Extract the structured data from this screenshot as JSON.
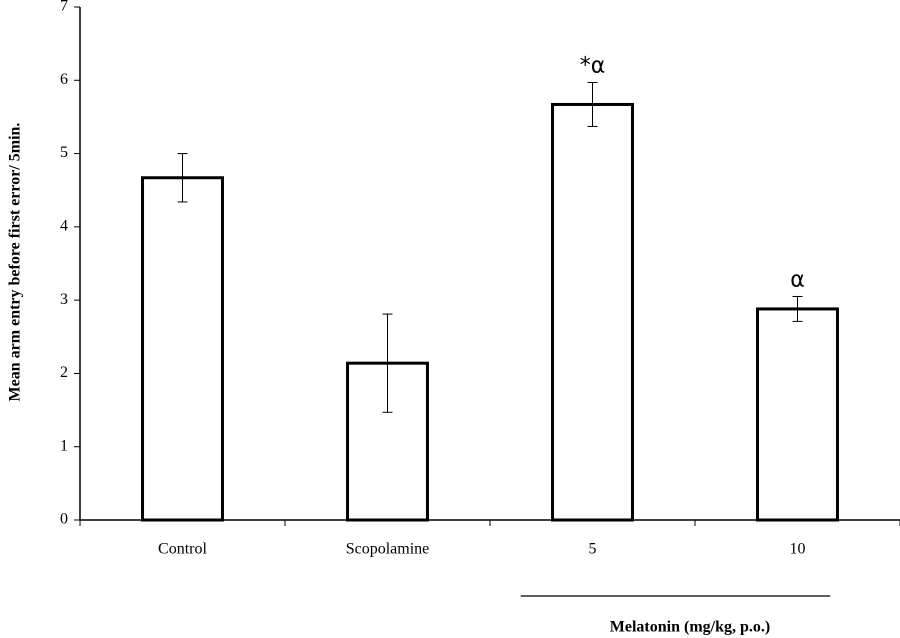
{
  "chart_data": {
    "type": "bar",
    "y_label": "Mean arm entry before first error/ 5min.",
    "categories": [
      "Control",
      "Scopolamine",
      "5",
      "10"
    ],
    "values": [
      4.67,
      2.14,
      5.67,
      2.88
    ],
    "errors": [
      0.33,
      0.67,
      0.3,
      0.17
    ],
    "color": "#ffffff",
    "ylim": [
      0,
      7
    ],
    "yticks": [
      0,
      1,
      2,
      3,
      4,
      5,
      6,
      7
    ],
    "annotations": [
      {
        "text": "*α",
        "category": 2
      },
      {
        "text": "α",
        "category": 3
      }
    ],
    "group_label": "Melatonin (mg/kg, p.o.)"
  }
}
